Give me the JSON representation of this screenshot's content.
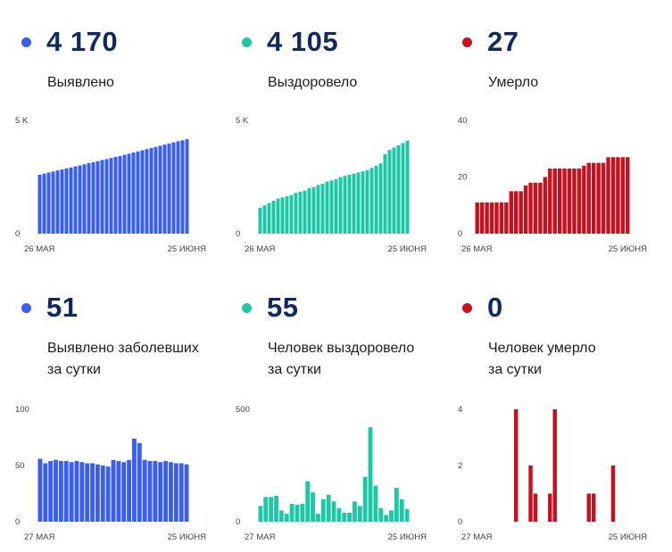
{
  "colors": {
    "blue": "#3a5ef0",
    "teal": "#1ec8a6",
    "red": "#c8101e",
    "title": "#102a5e"
  },
  "panels": [
    {
      "value": "4 170",
      "label1": "Выявлено",
      "label2": "",
      "color": "#3a5ef0",
      "chart_data": {
        "type": "bar",
        "ylim": [
          0,
          5000
        ],
        "yticks": [
          {
            "v": 0,
            "label": "0"
          },
          {
            "v": 5000,
            "label": "5 K"
          }
        ],
        "x_start": "26 МАЯ",
        "x_end": "25 ИЮНЯ",
        "values": [
          2600,
          2650,
          2700,
          2740,
          2790,
          2830,
          2880,
          2920,
          2970,
          3010,
          3060,
          3110,
          3150,
          3200,
          3250,
          3290,
          3340,
          3390,
          3430,
          3480,
          3530,
          3580,
          3630,
          3680,
          3730,
          3780,
          3830,
          3880,
          3930,
          3980,
          4030,
          4080,
          4120,
          4170
        ]
      }
    },
    {
      "value": "4 105",
      "label1": "Выздоровело",
      "label2": "",
      "color": "#1ec8a6",
      "chart_data": {
        "type": "bar",
        "ylim": [
          0,
          5000
        ],
        "yticks": [
          {
            "v": 0,
            "label": "0"
          },
          {
            "v": 5000,
            "label": "5 K"
          }
        ],
        "x_start": "26 МАЯ",
        "x_end": "25 ИЮНЯ",
        "values": [
          1150,
          1250,
          1350,
          1450,
          1550,
          1600,
          1650,
          1700,
          1800,
          1850,
          1900,
          2000,
          2050,
          2150,
          2200,
          2300,
          2350,
          2400,
          2500,
          2550,
          2600,
          2650,
          2700,
          2750,
          2800,
          2900,
          3000,
          3100,
          3500,
          3700,
          3800,
          3900,
          4000,
          4105
        ]
      }
    },
    {
      "value": "27",
      "label1": "Умерло",
      "label2": "",
      "color": "#c8101e",
      "chart_data": {
        "type": "bar",
        "ylim": [
          0,
          40
        ],
        "yticks": [
          {
            "v": 0,
            "label": "0"
          },
          {
            "v": 20,
            "label": "20"
          },
          {
            "v": 40,
            "label": "40"
          }
        ],
        "x_start": "26 МАЯ",
        "x_end": "25 ИЮНЯ",
        "values": [
          11,
          11,
          11,
          11,
          11,
          11,
          11,
          15,
          15,
          15,
          17,
          18,
          18,
          18,
          20,
          23,
          23,
          23,
          23,
          23,
          23,
          23,
          24,
          25,
          25,
          25,
          25,
          27,
          27,
          27,
          27,
          27
        ]
      }
    },
    {
      "value": "51",
      "label1": "Выявлено заболевших",
      "label2": "за сутки",
      "color": "#3a5ef0",
      "chart_data": {
        "type": "bar",
        "ylim": [
          0,
          100
        ],
        "yticks": [
          {
            "v": 0,
            "label": "0"
          },
          {
            "v": 50,
            "label": "50"
          },
          {
            "v": 100,
            "label": "100"
          }
        ],
        "x_start": "27 МАЯ",
        "x_end": "25 ИЮНЯ",
        "values": [
          56,
          52,
          54,
          55,
          54,
          54,
          53,
          54,
          53,
          52,
          52,
          51,
          50,
          49,
          55,
          54,
          53,
          55,
          74,
          70,
          55,
          54,
          54,
          53,
          54,
          53,
          52,
          52,
          51
        ]
      }
    },
    {
      "value": "55",
      "label1": "Человек выздоровело",
      "label2": "за сутки",
      "color": "#1ec8a6",
      "chart_data": {
        "type": "bar",
        "ylim": [
          0,
          500
        ],
        "yticks": [
          {
            "v": 0,
            "label": "0"
          },
          {
            "v": 500,
            "label": "500"
          }
        ],
        "x_start": "27 МАЯ",
        "x_end": "25 ИЮНЯ",
        "values": [
          70,
          110,
          110,
          115,
          50,
          35,
          80,
          75,
          80,
          180,
          130,
          35,
          100,
          120,
          90,
          60,
          40,
          40,
          90,
          70,
          200,
          420,
          160,
          60,
          30,
          50,
          150,
          100,
          55
        ]
      }
    },
    {
      "value": "0",
      "label1": "Человек умерло",
      "label2": "за сутки",
      "color": "#c8101e",
      "chart_data": {
        "type": "bar",
        "ylim": [
          0,
          4
        ],
        "yticks": [
          {
            "v": 0,
            "label": "0"
          },
          {
            "v": 2,
            "label": "2"
          },
          {
            "v": 4,
            "label": "4"
          }
        ],
        "x_start": "27 МАЯ",
        "x_end": "25 ИЮНЯ",
        "values": [
          0,
          0,
          0,
          0,
          0,
          0,
          0,
          0,
          4,
          0,
          0,
          2,
          1,
          0,
          0,
          1,
          4,
          0,
          0,
          0,
          0,
          0,
          0,
          1,
          1,
          0,
          0,
          0,
          2,
          0,
          0,
          0
        ]
      }
    }
  ]
}
